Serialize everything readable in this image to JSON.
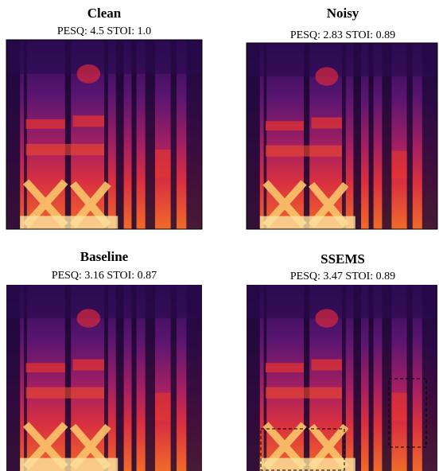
{
  "panels": [
    {
      "title": "Clean",
      "metrics": "PESQ: 4.5 STOI: 1.0"
    },
    {
      "title": "Noisy",
      "metrics": "PESQ: 2.83 STOI: 0.89"
    },
    {
      "title": "Baseline",
      "metrics": "PESQ: 3.16 STOI: 0.87"
    },
    {
      "title": "SSEMS",
      "metrics": "PESQ: 3.47 STOI: 0.89"
    }
  ]
}
